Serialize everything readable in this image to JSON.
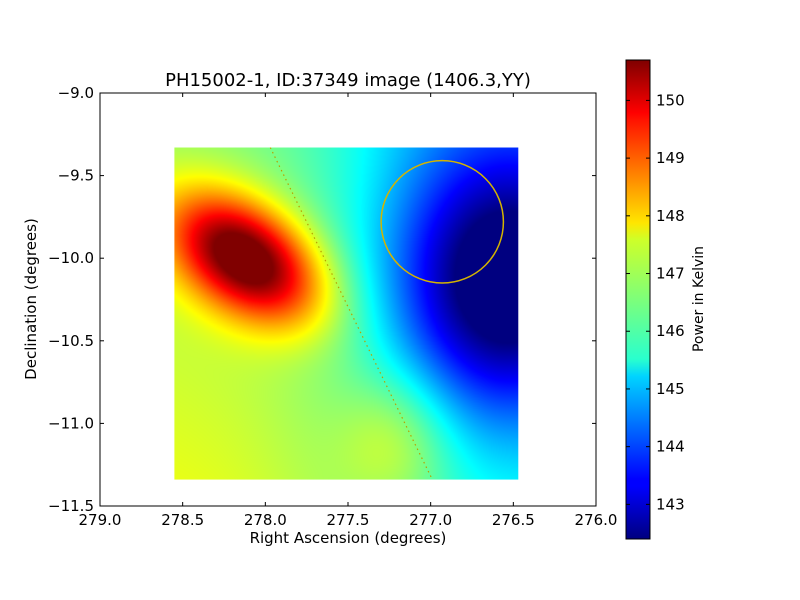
{
  "chart_data": {
    "type": "heatmap",
    "title": "PH15002-1, ID:37349 image (1406.3,YY)",
    "xlabel": "Right Ascension (degrees)",
    "ylabel": "Declination (degrees)",
    "xlim": [
      279.0,
      276.0
    ],
    "ylim": [
      -11.5,
      -9.0
    ],
    "x_ticks": [
      "279.0",
      "278.5",
      "278.0",
      "277.5",
      "277.0",
      "276.5",
      "276.0"
    ],
    "y_ticks": [
      "−9.0",
      "−9.5",
      "−10.0",
      "−10.5",
      "−11.0",
      "−11.5"
    ],
    "image_extent": {
      "ra": [
        278.55,
        276.47
      ],
      "dec": [
        -11.34,
        -9.33
      ]
    },
    "colormap": "jet",
    "colorbar": {
      "label": "Power in Kelvin",
      "range": [
        142.4,
        150.7
      ],
      "ticks": [
        "143",
        "144",
        "145",
        "146",
        "147",
        "148",
        "149",
        "150"
      ]
    },
    "features": [
      {
        "kind": "max",
        "ra": 278.12,
        "dec": -10.0,
        "value": 150.6
      },
      {
        "kind": "min",
        "ra": 276.55,
        "dec": -10.15,
        "value": 142.5
      }
    ],
    "circle": {
      "center_ra": 276.93,
      "center_dec": -9.78,
      "radius_deg": 0.37,
      "color": "#d4b400"
    },
    "dotted_line": {
      "points": [
        [
          277.97,
          -9.33
        ],
        [
          276.99,
          -11.34
        ]
      ],
      "color": "#b8a000"
    }
  }
}
